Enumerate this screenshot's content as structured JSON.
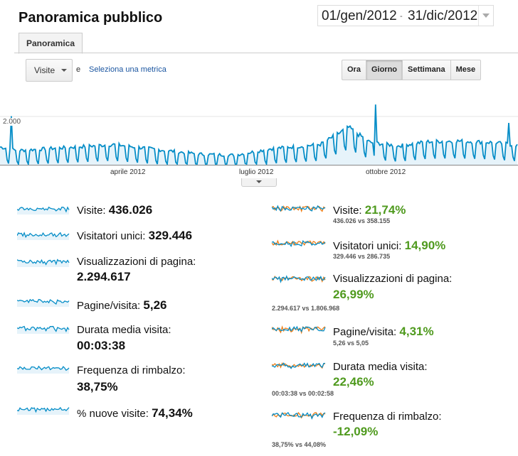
{
  "header": {
    "title": "Panoramica pubblico",
    "date_start": "01/gen/2012",
    "date_sep": "-",
    "date_end": "31/dic/2012"
  },
  "tabs": [
    "Panoramica"
  ],
  "controls": {
    "metric_select": "Visite",
    "and_label": "e",
    "add_metric_link": "Seleziona una metrica",
    "granularity": [
      "Ora",
      "Giorno",
      "Settimana",
      "Mese"
    ],
    "active_granularity": "Giorno"
  },
  "chart_data": {
    "type": "area",
    "y_tick_label": "2.000",
    "x_labels": [
      "aprile 2012",
      "luglio 2012",
      "ottobre 2012"
    ],
    "series_color": "#058dc7",
    "fill_color": "#e6f3fa",
    "visible_value_range": [
      900,
      3000
    ],
    "summary_note": "Daily visits, 2012: roughly 1.000–1.800 per day with a weekly dip, peak near 2.700 in late September"
  },
  "summary": [
    {
      "label": "Visite:",
      "value": "436.026"
    },
    {
      "label": "Visitatori unici:",
      "value": "329.446"
    },
    {
      "label": "Visualizzazioni di pagina:",
      "value": "2.294.617"
    },
    {
      "label": "Pagine/visita:",
      "value": "5,26"
    },
    {
      "label": "Durata media visita:",
      "value": "00:03:38"
    },
    {
      "label": "Frequenza di rimbalzo:",
      "value": "38,75%"
    },
    {
      "label": "% nuove visite:",
      "value": "74,34%"
    }
  ],
  "comparison": [
    {
      "label": "Visite:",
      "pct": "21,74%",
      "vs": "436.026 vs 358.155"
    },
    {
      "label": "Visitatori unici:",
      "pct": "14,90%",
      "vs": "329.446 vs 286.735"
    },
    {
      "label": "Visualizzazioni di pagina:",
      "pct": "26,99%",
      "vs": "2.294.617 vs 1.806.968"
    },
    {
      "label": "Pagine/visita:",
      "pct": "4,31%",
      "vs": "5,26 vs 5,05"
    },
    {
      "label": "Durata media visita:",
      "pct": "22,46%",
      "vs": "00:03:38 vs 00:02:58"
    },
    {
      "label": "Frequenza di rimbalzo:",
      "pct": "-12,09%",
      "vs": "38,75% vs 44,08%"
    }
  ],
  "colors": {
    "current": "#058dc7",
    "previous": "#ed7e17",
    "positive": "#4f9a1e"
  }
}
